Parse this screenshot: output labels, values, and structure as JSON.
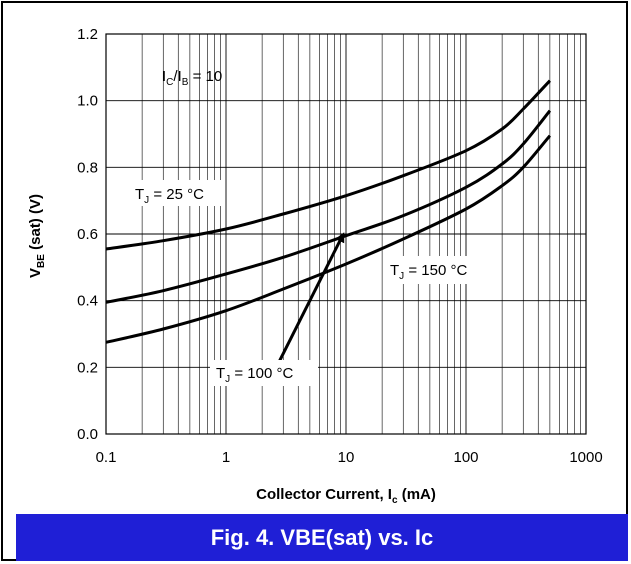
{
  "caption": {
    "text": "Fig. 4.  VBE(sat) vs. Ic",
    "bg_color": "#1f1fd6",
    "text_color": "#ffffff"
  },
  "chart_data": {
    "type": "line",
    "xscale": "log",
    "xlim": [
      0.1,
      1000
    ],
    "ylim": [
      0.0,
      1.2
    ],
    "xticks": [
      0.1,
      1,
      10,
      100,
      1000
    ],
    "xtick_labels": [
      "0.1",
      "1",
      "10",
      "100",
      "1000"
    ],
    "yticks": [
      0.0,
      0.2,
      0.4,
      0.6,
      0.8,
      1.0,
      1.2
    ],
    "ytick_labels": [
      "0.0",
      "0.2",
      "0.4",
      "0.6",
      "0.8",
      "1.0",
      "1.2"
    ],
    "grid": true,
    "xlabel": {
      "main": "Collector Current, I",
      "sub": "c",
      "unit": " (mA)"
    },
    "ylabel": {
      "main": "V",
      "sub": "BE",
      "rest": " (sat) (V)"
    },
    "condition_label": {
      "a": "I",
      "a_sub": "C",
      "mid": "/I",
      "b_sub": "B",
      "rest": " = 10"
    },
    "series": [
      {
        "name": "T_J = 25 °C",
        "label": {
          "main": "T",
          "sub": "J",
          "rest": " = 25 °C"
        },
        "x": [
          0.1,
          0.3,
          1,
          3,
          10,
          30,
          100,
          200,
          300,
          500
        ],
        "y": [
          0.555,
          0.58,
          0.615,
          0.66,
          0.715,
          0.775,
          0.85,
          0.915,
          0.975,
          1.06
        ]
      },
      {
        "name": "T_J = 100 °C",
        "label": {
          "main": "T",
          "sub": "J",
          "rest": " = 100 °C"
        },
        "x": [
          0.1,
          0.3,
          1,
          3,
          10,
          30,
          100,
          200,
          300,
          500
        ],
        "y": [
          0.395,
          0.43,
          0.48,
          0.53,
          0.595,
          0.655,
          0.74,
          0.81,
          0.87,
          0.97
        ]
      },
      {
        "name": "T_J = 150 °C",
        "label": {
          "main": "T",
          "sub": "J",
          "rest": " = 150 °C"
        },
        "x": [
          0.1,
          0.3,
          1,
          3,
          10,
          30,
          100,
          200,
          300,
          500
        ],
        "y": [
          0.275,
          0.315,
          0.37,
          0.435,
          0.51,
          0.585,
          0.675,
          0.745,
          0.8,
          0.895
        ]
      }
    ],
    "arrow": {
      "from": [
        2.8,
        0.22
      ],
      "to": [
        9.5,
        0.6
      ]
    },
    "line_color": "#000000"
  }
}
